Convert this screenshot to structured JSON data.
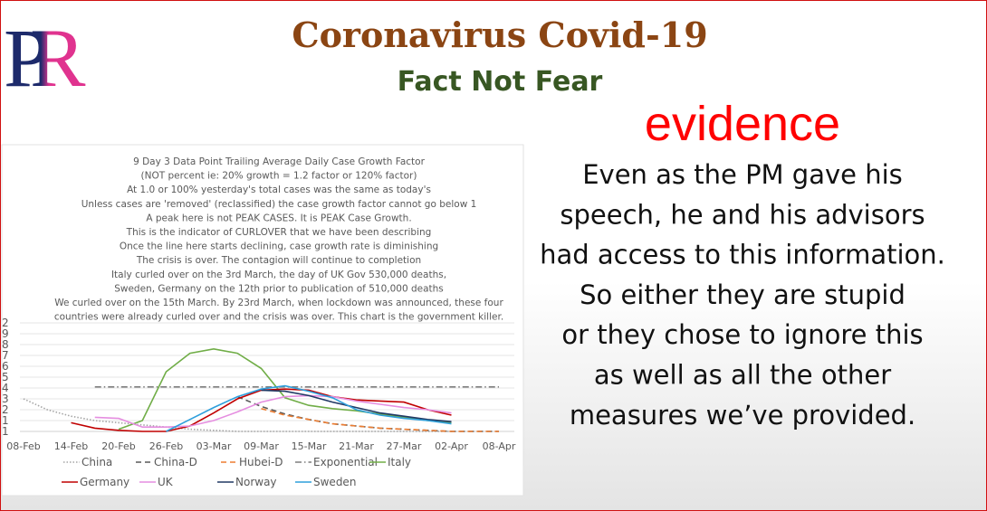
{
  "header": {
    "logo": "PR",
    "title": "Coronavirus Covid-19",
    "subtitle": "Fact Not Fear"
  },
  "evidence": {
    "heading": "evidence",
    "lines": [
      "Even as the PM gave his",
      "speech, he and his advisors",
      "had access to this information.",
      "So either they are stupid",
      "or they chose to ignore this",
      "as well as all the other",
      "measures we’ve provided."
    ]
  },
  "chart_data": {
    "type": "line",
    "title_lines": [
      "9 Day 3 Data Point Trailing Average Daily Case Growth Factor",
      "(NOT percent ie: 20% growth = 1.2 factor or 120% factor)",
      "At 1.0 or 100% yesterday's total cases was the same as today's",
      "Unless cases are 'removed' (reclassified) the case growth factor cannot go below 1",
      "A peak here is not PEAK CASES. It is PEAK Case Growth.",
      "This is the indicator of CURLOVER that we have been describing",
      "Once the line here starts declining, case growth rate is diminishing",
      "The crisis is over. The contagion will continue to completion",
      "Italy curled over on the 3rd March, the day of UK Gov 530,000 deaths,",
      "Sweden, Germany on the 12th prior to publication of 510,000 deaths",
      "We curled over on the 15th March. By 23rd March, when lockdown was announced, these four",
      "countries were already curled over and the crisis was over. This chart is the government killer."
    ],
    "categories": [
      "08-Feb",
      null,
      "14-Feb",
      null,
      "20-Feb",
      null,
      "26-Feb",
      null,
      "03-Mar",
      null,
      "09-Mar",
      null,
      "15-Mar",
      null,
      "21-Mar",
      null,
      "27-Mar",
      null,
      "02-Apr",
      null,
      "08-Apr"
    ],
    "series": [
      {
        "name": "China",
        "color": "#a5a5a5",
        "dash": "dotted",
        "values": [
          1.3,
          1.2,
          1.14,
          1.1,
          1.08,
          1.06,
          1.04,
          1.02,
          1.01,
          1.0,
          1.0,
          1.0,
          1.0,
          1.0,
          1.0,
          1.0,
          1.0,
          1.0,
          1.0,
          null,
          null
        ]
      },
      {
        "name": "China-D",
        "color": "#595959",
        "dash": "dashed",
        "values": [
          null,
          null,
          null,
          null,
          null,
          null,
          null,
          null,
          null,
          1.32,
          1.23,
          1.16,
          1.11,
          1.07,
          1.05,
          1.03,
          1.02,
          1.01,
          1.0,
          1.0,
          1.0
        ]
      },
      {
        "name": "Hubei-D",
        "color": "#ed7d31",
        "dash": "dashed",
        "values": [
          null,
          null,
          null,
          null,
          null,
          null,
          null,
          null,
          null,
          null,
          1.21,
          1.15,
          1.11,
          1.07,
          1.05,
          1.03,
          1.02,
          1.01,
          1.0,
          1.0,
          1.0
        ]
      },
      {
        "name": "Exponential",
        "color": "#7f7f7f",
        "dash": "dashdot",
        "values": [
          null,
          null,
          null,
          1.41,
          1.41,
          1.41,
          1.41,
          1.41,
          1.41,
          1.41,
          1.41,
          1.41,
          1.41,
          1.41,
          1.41,
          1.41,
          1.41,
          1.41,
          1.41,
          1.41,
          1.41
        ]
      },
      {
        "name": "Italy",
        "color": "#70ad47",
        "dash": "solid",
        "values": [
          null,
          null,
          null,
          null,
          1.02,
          1.1,
          1.55,
          1.72,
          1.76,
          1.72,
          1.58,
          1.31,
          1.24,
          1.21,
          1.19,
          1.16,
          1.13,
          1.1,
          1.08,
          null,
          null
        ]
      },
      {
        "name": "Germany",
        "color": "#c00000",
        "dash": "solid",
        "values": [
          null,
          null,
          1.08,
          1.03,
          1.01,
          1.0,
          1.0,
          1.05,
          1.17,
          1.3,
          1.38,
          1.39,
          1.38,
          1.32,
          1.29,
          1.28,
          1.27,
          1.2,
          1.15,
          null,
          null
        ]
      },
      {
        "name": "UK",
        "color": "#e58ee0",
        "dash": "solid",
        "values": [
          null,
          null,
          null,
          1.13,
          1.12,
          1.04,
          1.04,
          1.05,
          1.1,
          1.18,
          1.27,
          1.32,
          1.33,
          1.32,
          1.28,
          1.25,
          1.22,
          1.2,
          1.17,
          null,
          null
        ]
      },
      {
        "name": "Norway",
        "color": "#203864",
        "dash": "solid",
        "values": [
          null,
          null,
          null,
          null,
          null,
          null,
          null,
          null,
          null,
          null,
          1.38,
          1.37,
          1.33,
          1.27,
          1.22,
          1.17,
          1.14,
          1.11,
          1.09,
          null,
          null
        ]
      },
      {
        "name": "Sweden",
        "color": "#2e9fdc",
        "dash": "solid",
        "values": [
          null,
          null,
          null,
          null,
          null,
          null,
          1.0,
          1.11,
          1.22,
          1.32,
          1.39,
          1.42,
          1.37,
          1.31,
          1.2,
          1.15,
          1.12,
          1.1,
          1.07,
          null,
          null
        ]
      }
    ],
    "ylim": [
      1,
      2
    ],
    "yticks": [
      1,
      {
        "value": 1.1,
        "label": "1"
      },
      {
        "value": 1.2,
        "label": "2"
      },
      {
        "value": 1.3,
        "label": "3"
      },
      {
        "value": 1.4,
        "label": "4"
      },
      {
        "value": 1.5,
        "label": "5"
      },
      {
        "value": 1.6,
        "label": "6"
      },
      {
        "value": 1.7,
        "label": "7"
      },
      {
        "value": 1.8,
        "label": "8"
      },
      {
        "value": 1.9,
        "label": "9"
      },
      2
    ],
    "grid": true,
    "legend": "bottom"
  }
}
